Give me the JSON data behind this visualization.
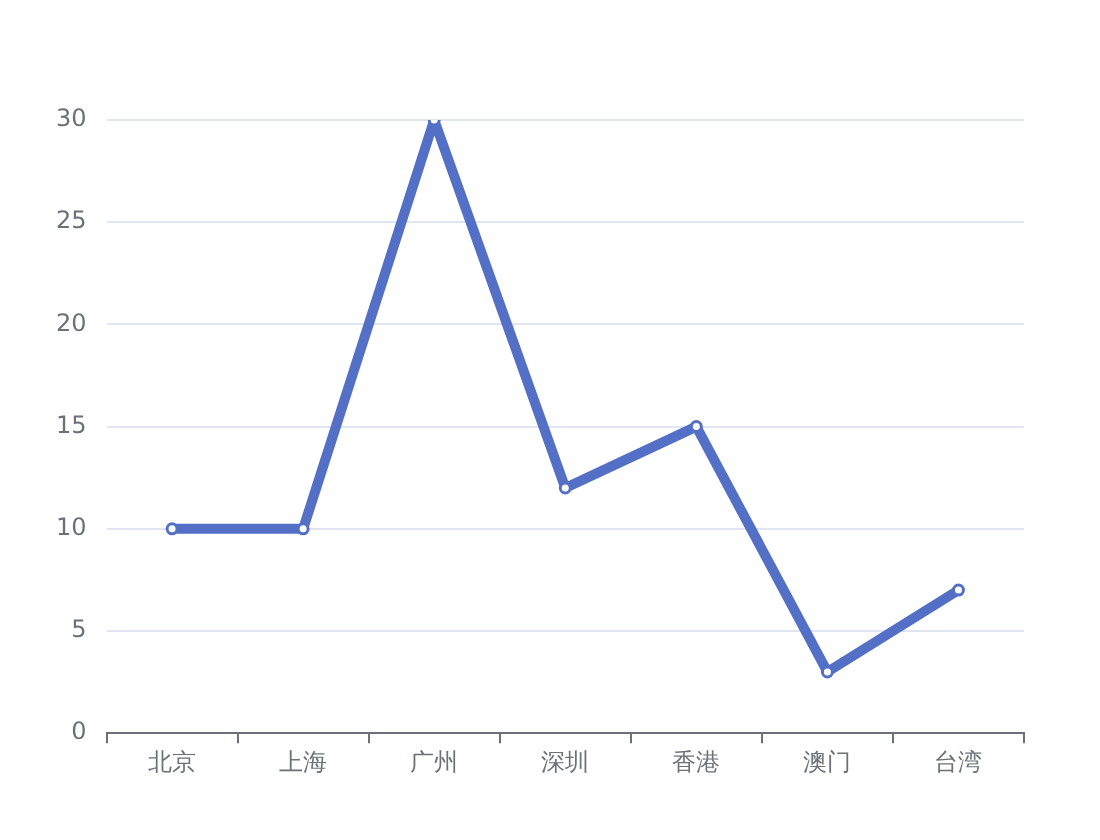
{
  "chart_data": {
    "type": "line",
    "categories": [
      "北京",
      "上海",
      "广州",
      "深圳",
      "香港",
      "澳门",
      "台湾"
    ],
    "series": [
      {
        "color": "#5470c6",
        "values": [
          10,
          10,
          30,
          12,
          15,
          3,
          7
        ]
      }
    ],
    "ylim": [
      0,
      30
    ],
    "yticks": [
      0,
      5,
      10,
      15,
      20,
      25,
      30
    ],
    "grid": "y",
    "legend": false,
    "marker": "circle",
    "line_style": "solid"
  }
}
